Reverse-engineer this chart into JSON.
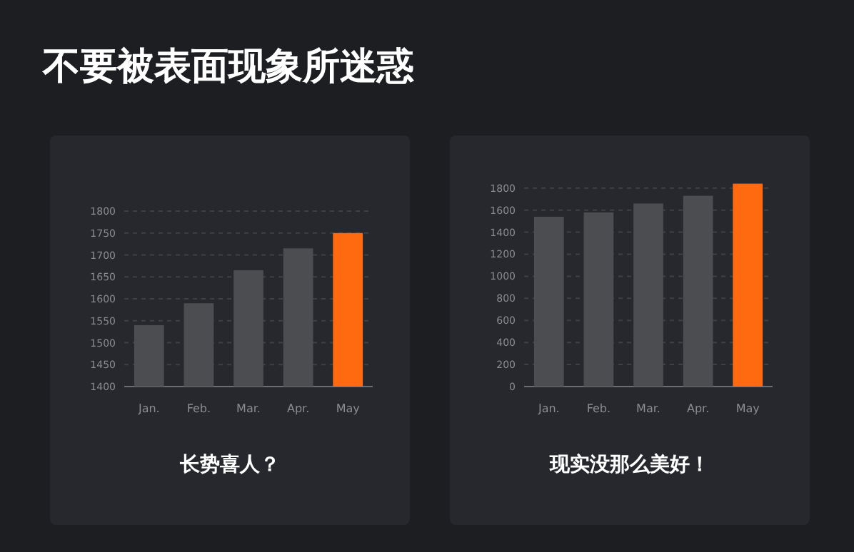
{
  "chart_data": [
    {
      "type": "other",
      "title": "不要被表面现象所迷惑"
    },
    {
      "type": "bar",
      "categories": [
        "Jan.",
        "Feb.",
        "Mar.",
        "Apr.",
        "May"
      ],
      "values": [
        1540,
        1590,
        1665,
        1715,
        1750
      ],
      "colors": [
        "#4b4d50",
        "#4b4d50",
        "#4b4d50",
        "#4b4d50",
        "#ff6a10"
      ],
      "ylim": [
        1400,
        1800
      ],
      "yticks": [
        1400,
        1450,
        1500,
        1550,
        1600,
        1650,
        1700,
        1750,
        1800
      ],
      "grid": "y",
      "annotations": [
        "长势喜人？"
      ]
    },
    {
      "type": "bar",
      "categories": [
        "Jan.",
        "Feb.",
        "Mar.",
        "Apr.",
        "May"
      ],
      "values": [
        1540,
        1580,
        1660,
        1730,
        1840
      ],
      "colors": [
        "#4b4d50",
        "#4b4d50",
        "#4b4d50",
        "#4b4d50",
        "#ff6a10"
      ],
      "ylim": [
        0,
        1850
      ],
      "yticks": [
        0,
        200,
        400,
        600,
        800,
        1000,
        1200,
        1400,
        1600,
        1800
      ],
      "grid": "y",
      "annotations": [
        "现实没那么美好！"
      ]
    }
  ]
}
